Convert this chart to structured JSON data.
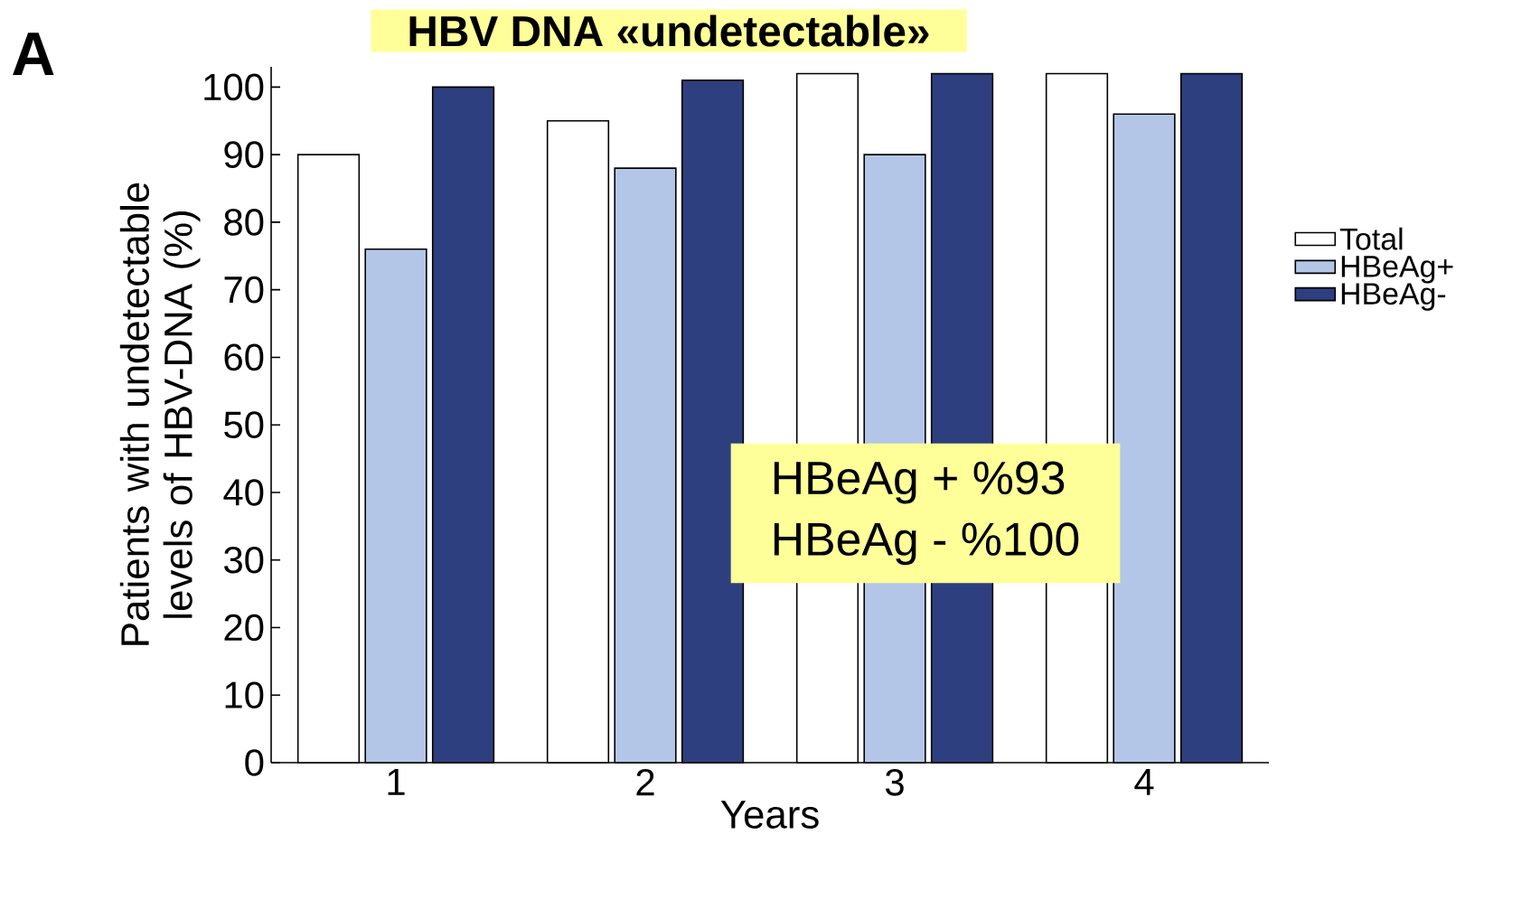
{
  "chart_data": {
    "type": "bar",
    "title": "HBV DNA «undetectable»",
    "categories": [
      "1",
      "2",
      "3",
      "4"
    ],
    "xlabel": "Years",
    "ylabel": "Patients with undetectable levels of HBV-DNA (%)",
    "series": [
      {
        "name": "Total",
        "color": "#ffffff",
        "values": [
          90,
          95,
          102,
          102
        ]
      },
      {
        "name": "HBeAg+",
        "color": "#b4c6e7",
        "values": [
          76,
          88,
          90,
          96
        ]
      },
      {
        "name": "HBeAg-",
        "color": "#2e3f7f",
        "values": [
          100,
          101,
          102,
          102
        ]
      }
    ],
    "ylim": [
      0,
      103
    ],
    "yticks": [
      0,
      10,
      20,
      30,
      40,
      50,
      60,
      70,
      80,
      90,
      100
    ],
    "legend": "right",
    "annotations": [
      "A",
      "HBeAg +  %93",
      "HBeAg -   %100"
    ]
  }
}
